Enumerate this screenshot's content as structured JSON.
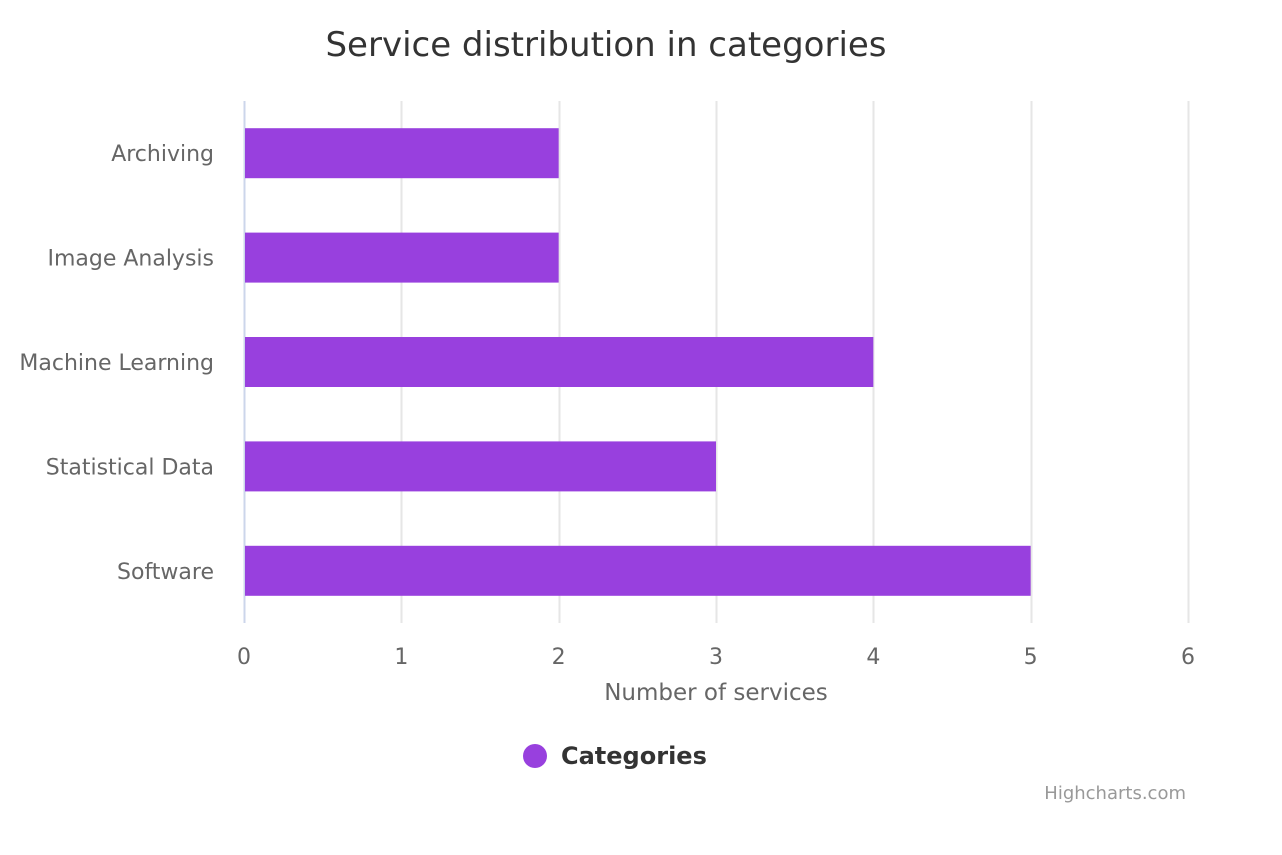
{
  "chart_data": {
    "type": "bar",
    "orientation": "horizontal",
    "title": "Service distribution in categories",
    "categories": [
      "Archiving",
      "Image Analysis",
      "Machine Learning",
      "Statistical Data",
      "Software"
    ],
    "series": [
      {
        "name": "Categories",
        "values": [
          2,
          2,
          4,
          3,
          5
        ],
        "color": "#9840de"
      }
    ],
    "xlabel": "Number of services",
    "xlim": [
      0,
      6
    ],
    "x_ticks": [
      "0",
      "1",
      "2",
      "3",
      "4",
      "5",
      "6"
    ],
    "grid": true,
    "legend_position": "bottom-center"
  },
  "colors": {
    "bar": "#9840de",
    "grid": "#e6e6e6",
    "axis_line": "#ccd6eb"
  },
  "credits": "Highcharts.com"
}
